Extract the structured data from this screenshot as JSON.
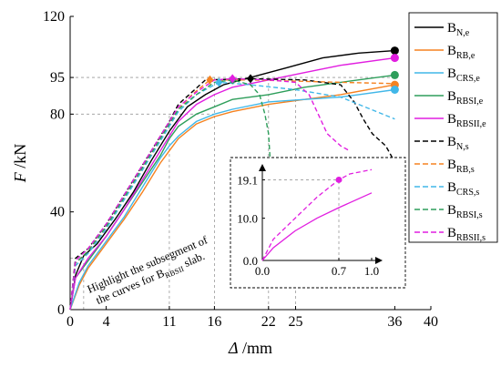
{
  "chart_data": [
    {
      "type": "line",
      "xlabel_parts": [
        "Δ",
        " /mm"
      ],
      "ylabel_parts": [
        "F",
        " /kN"
      ],
      "xlim": [
        0,
        40
      ],
      "ylim": [
        0,
        120
      ],
      "x_ticks": [
        0,
        4,
        11,
        16,
        22,
        25,
        36,
        40
      ],
      "y_ticks": [
        0,
        40,
        80,
        95,
        120
      ],
      "grid": "dashed reference lines at x=11, 16, 22, 25 and y=80, 95",
      "legend_position": "top-right",
      "annotation": {
        "parts": [
          {
            "t": "Highlight the subsegment of",
            "sub": ""
          },
          {
            "t": "the curves for B",
            "sub": "RBSII",
            "after": " slab."
          }
        ]
      },
      "series": [
        {
          "name": "B",
          "sub": "N,e",
          "color": "#000000",
          "dash": "solid",
          "marker": "circle",
          "x": [
            0,
            0.6,
            1.5,
            3,
            5,
            7,
            9,
            11,
            13,
            15,
            17,
            20,
            24,
            28,
            32,
            36
          ],
          "y": [
            0,
            14,
            22,
            27,
            37,
            48,
            61,
            73,
            83,
            88,
            92,
            95,
            99,
            103,
            105,
            106
          ]
        },
        {
          "name": "B",
          "sub": "RB,e",
          "color": "#F58220",
          "dash": "solid",
          "marker": "circle",
          "x": [
            0,
            1,
            2,
            4,
            6,
            8,
            10,
            11,
            12,
            14,
            16,
            18,
            22,
            26,
            30,
            36
          ],
          "y": [
            0,
            10,
            17,
            27,
            37,
            48,
            60,
            65,
            70,
            76,
            79,
            81,
            84,
            86,
            88,
            92
          ]
        },
        {
          "name": "B",
          "sub": "CRS,e",
          "color": "#41B7E8",
          "dash": "solid",
          "marker": "circle",
          "x": [
            0,
            1,
            2,
            4,
            6,
            8,
            10,
            11,
            12,
            14,
            16,
            18,
            22,
            26,
            30,
            36
          ],
          "y": [
            0,
            11,
            18,
            28,
            38,
            50,
            62,
            67,
            71,
            77,
            80,
            82,
            85,
            86,
            87,
            90
          ]
        },
        {
          "name": "B",
          "sub": "RBSI,e",
          "color": "#2E9E5B",
          "dash": "solid",
          "marker": "circle",
          "x": [
            0,
            0.6,
            2,
            4,
            6,
            8,
            10,
            11,
            12,
            14,
            16,
            18,
            22,
            26,
            30,
            36
          ],
          "y": [
            0,
            13,
            20,
            30,
            41,
            52,
            63,
            70,
            75,
            80,
            83,
            86,
            88,
            91,
            93,
            96
          ]
        },
        {
          "name": "B",
          "sub": "RBSII,e",
          "color": "#E11EE0",
          "dash": "solid",
          "marker": "circle",
          "x": [
            0,
            0.6,
            2,
            4,
            6,
            8,
            10,
            11,
            12,
            14,
            16,
            18,
            22,
            26,
            30,
            36
          ],
          "y": [
            0,
            13,
            21,
            30,
            41,
            53,
            65,
            71,
            77,
            84,
            88,
            91,
            94,
            97,
            100,
            103
          ]
        },
        {
          "name": "B",
          "sub": "N,s",
          "color": "#000000",
          "dash": "dashed",
          "marker": "diamond",
          "x": [
            0,
            0.6,
            2,
            4,
            6,
            8,
            10,
            11,
            12,
            13.5,
            15,
            20,
            26,
            30,
            31.5,
            32.5,
            33.5,
            35,
            36.2
          ],
          "y": [
            0,
            21,
            25,
            35,
            47,
            59,
            71,
            77,
            84,
            89,
            94,
            94.5,
            94,
            92,
            85,
            78,
            72,
            67,
            59
          ]
        },
        {
          "name": "B",
          "sub": "RB,s",
          "color": "#F58220",
          "dash": "dashed",
          "marker": "diamond",
          "x": [
            0,
            0.6,
            2,
            4,
            6,
            8,
            10,
            11,
            12,
            13.5,
            15.5,
            20,
            25,
            30,
            36
          ],
          "y": [
            0,
            19,
            24,
            34,
            46,
            58,
            70,
            76,
            82,
            88,
            94,
            94,
            93.5,
            93,
            92.5
          ]
        },
        {
          "name": "B",
          "sub": "CRS,s",
          "color": "#41B7E8",
          "dash": "dashed",
          "marker": "diamond",
          "x": [
            0,
            0.6,
            2,
            4,
            6,
            8,
            10,
            11,
            12,
            14,
            16.5,
            20,
            25,
            30,
            36
          ],
          "y": [
            0,
            18,
            23,
            33,
            45,
            57,
            69,
            75,
            81,
            88,
            93,
            92,
            90,
            87,
            78
          ]
        },
        {
          "name": "B",
          "sub": "RBSI,s",
          "color": "#2E9E5B",
          "dash": "dashed",
          "marker": "diamond",
          "x": [
            0,
            0.6,
            2,
            4,
            6,
            8,
            10,
            11,
            12,
            14,
            16,
            18,
            20,
            21,
            21.6,
            22,
            22.2
          ],
          "y": [
            0,
            19,
            24,
            34,
            46,
            58,
            70,
            76,
            82,
            88,
            93,
            94,
            92,
            88,
            80,
            72,
            60
          ]
        },
        {
          "name": "B",
          "sub": "RBSII,s",
          "color": "#E11EE0",
          "dash": "dashed",
          "marker": "diamond",
          "x": [
            0,
            0.6,
            2,
            4,
            6,
            8,
            10,
            11,
            12,
            14,
            16,
            18,
            22,
            25,
            26.5,
            27.5,
            28.5,
            30,
            31
          ],
          "y": [
            0,
            20,
            25,
            35,
            47,
            59,
            71,
            77,
            83,
            89,
            94,
            94.5,
            94,
            93,
            88,
            80,
            72,
            67,
            65
          ]
        }
      ]
    },
    {
      "type": "line",
      "role": "inset",
      "xlim": [
        0,
        1.0
      ],
      "ylim": [
        0,
        22
      ],
      "x_ticks": [
        0.0,
        0.7,
        1.0
      ],
      "x_tick_labels": [
        "0.0",
        "0.7",
        "1.0"
      ],
      "y_ticks": [
        0.0,
        10.0,
        19.1
      ],
      "y_tick_labels": [
        "0.0",
        "10.0",
        "19.1"
      ],
      "series": [
        {
          "name": "B",
          "sub": "RBSII,s",
          "color": "#E11EE0",
          "dash": "dashed",
          "x": [
            0,
            0.1,
            0.3,
            0.5,
            0.7,
            0.8,
            1.0
          ],
          "y": [
            0,
            5,
            10,
            15,
            19.1,
            20.5,
            21.5
          ],
          "marker_point": [
            0.7,
            19.1
          ]
        },
        {
          "name": "B",
          "sub": "RBSII,e",
          "color": "#E11EE0",
          "dash": "solid",
          "x": [
            0,
            0.1,
            0.3,
            0.5,
            0.7,
            1.0
          ],
          "y": [
            0,
            3,
            7,
            10,
            12.5,
            16
          ]
        }
      ]
    }
  ]
}
